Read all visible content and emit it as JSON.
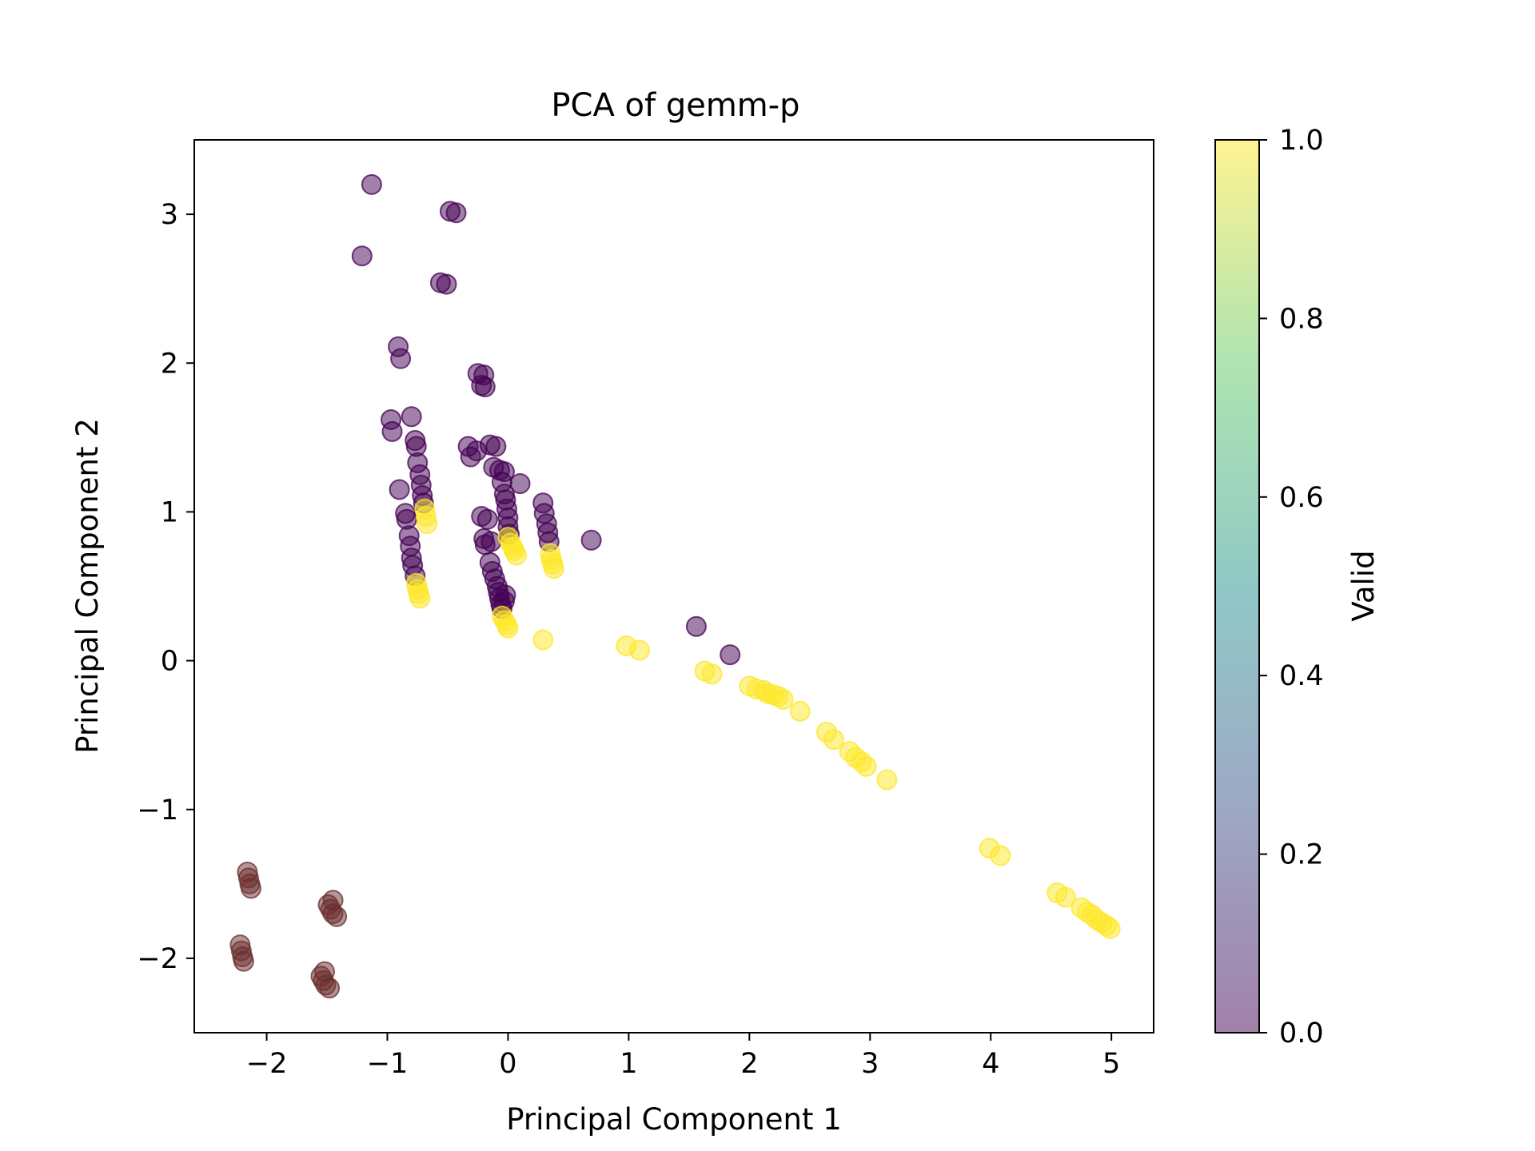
{
  "chart_data": {
    "type": "scatter",
    "title": "PCA of gemm-p",
    "xlabel": "Principal Component 1",
    "ylabel": "Principal Component 2",
    "xlim": [
      -2.6,
      5.35
    ],
    "ylim": [
      -2.5,
      3.5
    ],
    "xticks": [
      -2,
      -1,
      0,
      1,
      2,
      3,
      4,
      5
    ],
    "xtick_labels": [
      "−2",
      "−1",
      "0",
      "1",
      "2",
      "3",
      "4",
      "5"
    ],
    "yticks": [
      -2,
      -1,
      0,
      1,
      2,
      3
    ],
    "ytick_labels": [
      "−2",
      "−1",
      "0",
      "1",
      "2",
      "3"
    ],
    "colorbar": {
      "label": "Valid",
      "range": [
        0.0,
        1.0
      ],
      "ticks": [
        0.0,
        0.2,
        0.4,
        0.6,
        0.8,
        1.0
      ],
      "tick_labels": [
        "0.0",
        "0.2",
        "0.4",
        "0.6",
        "0.8",
        "1.0"
      ],
      "colormap": "viridis"
    },
    "colors": {
      "valid_0": "#440154",
      "valid_1": "#fde725",
      "outlier": "#6b2d2d"
    },
    "marker_alpha": 0.5,
    "grid": false,
    "series": [
      {
        "color_value": 0,
        "points": [
          [
            -1.13,
            3.2
          ],
          [
            -1.21,
            2.72
          ],
          [
            -0.48,
            3.02
          ],
          [
            -0.43,
            3.01
          ],
          [
            -0.56,
            2.54
          ],
          [
            -0.51,
            2.53
          ],
          [
            -0.91,
            2.11
          ],
          [
            -0.89,
            2.03
          ],
          [
            -0.97,
            1.62
          ],
          [
            -0.96,
            1.54
          ],
          [
            -0.8,
            1.64
          ],
          [
            -0.77,
            1.48
          ],
          [
            -0.76,
            1.44
          ],
          [
            -0.75,
            1.33
          ],
          [
            -0.73,
            1.25
          ],
          [
            -0.72,
            1.18
          ],
          [
            -0.71,
            1.11
          ],
          [
            -0.7,
            1.06
          ],
          [
            -0.9,
            1.15
          ],
          [
            -0.85,
            0.99
          ],
          [
            -0.84,
            0.95
          ],
          [
            -0.82,
            0.84
          ],
          [
            -0.81,
            0.77
          ],
          [
            -0.8,
            0.69
          ],
          [
            -0.79,
            0.64
          ],
          [
            -0.77,
            0.57
          ],
          [
            -0.25,
            1.93
          ],
          [
            -0.2,
            1.92
          ],
          [
            -0.22,
            1.85
          ],
          [
            -0.19,
            1.84
          ],
          [
            -0.33,
            1.44
          ],
          [
            -0.31,
            1.37
          ],
          [
            -0.26,
            1.41
          ],
          [
            -0.15,
            1.45
          ],
          [
            -0.1,
            1.44
          ],
          [
            -0.12,
            1.3
          ],
          [
            -0.07,
            1.28
          ],
          [
            -0.03,
            1.27
          ],
          [
            0.1,
            1.19
          ],
          [
            -0.05,
            1.2
          ],
          [
            -0.03,
            1.12
          ],
          [
            -0.02,
            1.08
          ],
          [
            -0.01,
            1.02
          ],
          [
            0.0,
            0.96
          ],
          [
            0.0,
            0.9
          ],
          [
            0.01,
            0.85
          ],
          [
            -0.22,
            0.97
          ],
          [
            -0.17,
            0.95
          ],
          [
            -0.2,
            0.82
          ],
          [
            -0.19,
            0.78
          ],
          [
            -0.14,
            0.8
          ],
          [
            -0.15,
            0.66
          ],
          [
            -0.13,
            0.6
          ],
          [
            -0.11,
            0.55
          ],
          [
            -0.09,
            0.5
          ],
          [
            -0.08,
            0.46
          ],
          [
            -0.07,
            0.42
          ],
          [
            -0.06,
            0.38
          ],
          [
            -0.05,
            0.35
          ],
          [
            -0.03,
            0.4
          ],
          [
            -0.02,
            0.44
          ],
          [
            0.29,
            1.06
          ],
          [
            0.3,
            0.99
          ],
          [
            0.32,
            0.92
          ],
          [
            0.33,
            0.86
          ],
          [
            0.34,
            0.8
          ],
          [
            0.69,
            0.81
          ],
          [
            1.56,
            0.23
          ],
          [
            1.84,
            0.04
          ]
        ]
      },
      {
        "color_value": 1,
        "points": [
          [
            -0.69,
            1.02
          ],
          [
            -0.68,
            0.97
          ],
          [
            -0.67,
            0.92
          ],
          [
            -0.76,
            0.52
          ],
          [
            -0.75,
            0.48
          ],
          [
            -0.74,
            0.45
          ],
          [
            -0.73,
            0.42
          ],
          [
            0.0,
            0.83
          ],
          [
            0.02,
            0.79
          ],
          [
            0.04,
            0.76
          ],
          [
            0.05,
            0.74
          ],
          [
            0.07,
            0.71
          ],
          [
            -0.05,
            0.3
          ],
          [
            -0.03,
            0.27
          ],
          [
            -0.01,
            0.24
          ],
          [
            0.0,
            0.22
          ],
          [
            0.35,
            0.72
          ],
          [
            0.36,
            0.68
          ],
          [
            0.37,
            0.65
          ],
          [
            0.38,
            0.62
          ],
          [
            0.29,
            0.14
          ],
          [
            0.98,
            0.1
          ],
          [
            1.09,
            0.07
          ],
          [
            1.63,
            -0.07
          ],
          [
            1.69,
            -0.09
          ],
          [
            2.0,
            -0.17
          ],
          [
            2.06,
            -0.19
          ],
          [
            2.12,
            -0.2
          ],
          [
            2.15,
            -0.22
          ],
          [
            2.2,
            -0.23
          ],
          [
            2.24,
            -0.24
          ],
          [
            2.28,
            -0.26
          ],
          [
            2.42,
            -0.34
          ],
          [
            2.64,
            -0.48
          ],
          [
            2.7,
            -0.53
          ],
          [
            2.83,
            -0.61
          ],
          [
            2.88,
            -0.65
          ],
          [
            2.93,
            -0.68
          ],
          [
            2.97,
            -0.71
          ],
          [
            3.14,
            -0.8
          ],
          [
            3.99,
            -1.26
          ],
          [
            4.08,
            -1.31
          ],
          [
            4.55,
            -1.56
          ],
          [
            4.62,
            -1.59
          ],
          [
            4.75,
            -1.66
          ],
          [
            4.8,
            -1.69
          ],
          [
            4.84,
            -1.71
          ],
          [
            4.88,
            -1.74
          ],
          [
            4.92,
            -1.76
          ],
          [
            4.96,
            -1.78
          ],
          [
            4.99,
            -1.8
          ]
        ]
      },
      {
        "color_value": null,
        "points": [
          [
            -2.16,
            -1.42
          ],
          [
            -2.15,
            -1.46
          ],
          [
            -2.14,
            -1.5
          ],
          [
            -2.13,
            -1.53
          ],
          [
            -1.45,
            -1.61
          ],
          [
            -1.49,
            -1.64
          ],
          [
            -1.47,
            -1.67
          ],
          [
            -1.45,
            -1.7
          ],
          [
            -1.42,
            -1.72
          ],
          [
            -2.22,
            -1.91
          ],
          [
            -2.21,
            -1.95
          ],
          [
            -2.2,
            -1.99
          ],
          [
            -2.19,
            -2.02
          ],
          [
            -1.55,
            -2.12
          ],
          [
            -1.52,
            -2.09
          ],
          [
            -1.53,
            -2.15
          ],
          [
            -1.51,
            -2.18
          ],
          [
            -1.48,
            -2.2
          ]
        ]
      }
    ]
  }
}
